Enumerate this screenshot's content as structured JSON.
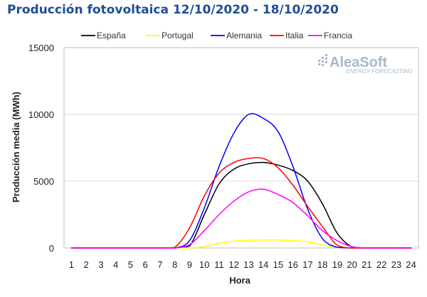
{
  "logo": {
    "name": "AleaSoft",
    "tagline": "ENERGY FORECASTING"
  },
  "chart_data": {
    "type": "line",
    "title": "Producción fotovoltaica 12/10/2020 - 18/10/2020",
    "xlabel": "Hora",
    "ylabel": "Producción media (MWh)",
    "ylim": [
      0,
      15000
    ],
    "yticks": [
      "0",
      "5000",
      "10000",
      "15000"
    ],
    "grid": true,
    "legend_position": "top",
    "x": [
      1,
      2,
      3,
      4,
      5,
      6,
      7,
      8,
      9,
      10,
      11,
      12,
      13,
      14,
      15,
      16,
      17,
      18,
      19,
      20,
      21,
      22,
      23,
      24
    ],
    "series": [
      {
        "name": "España",
        "color": "#000000",
        "values": [
          0,
          0,
          0,
          0,
          0,
          0,
          0,
          0,
          150,
          2500,
          4800,
          5900,
          6300,
          6400,
          6200,
          5800,
          5000,
          3300,
          1100,
          80,
          0,
          0,
          0,
          0
        ]
      },
      {
        "name": "Portugal",
        "color": "#ffff00",
        "values": [
          0,
          0,
          0,
          0,
          0,
          0,
          0,
          0,
          0,
          100,
          350,
          500,
          580,
          600,
          600,
          550,
          450,
          230,
          40,
          0,
          0,
          0,
          0,
          0
        ]
      },
      {
        "name": "Alemania",
        "color": "#0000ff",
        "values": [
          0,
          0,
          0,
          0,
          0,
          0,
          0,
          0,
          550,
          3000,
          6100,
          8600,
          10000,
          9700,
          8700,
          6100,
          2900,
          700,
          50,
          0,
          0,
          0,
          0,
          0
        ]
      },
      {
        "name": "Italia",
        "color": "#ff0000",
        "values": [
          0,
          0,
          0,
          0,
          0,
          0,
          0,
          50,
          1500,
          3900,
          5600,
          6400,
          6700,
          6700,
          6000,
          4700,
          3100,
          1600,
          200,
          0,
          0,
          0,
          0,
          0
        ]
      },
      {
        "name": "Francia",
        "color": "#ff00ff",
        "values": [
          0,
          0,
          0,
          0,
          0,
          0,
          0,
          0,
          250,
          1300,
          2500,
          3500,
          4200,
          4400,
          4000,
          3400,
          2400,
          1300,
          550,
          100,
          0,
          0,
          0,
          0
        ]
      }
    ]
  }
}
